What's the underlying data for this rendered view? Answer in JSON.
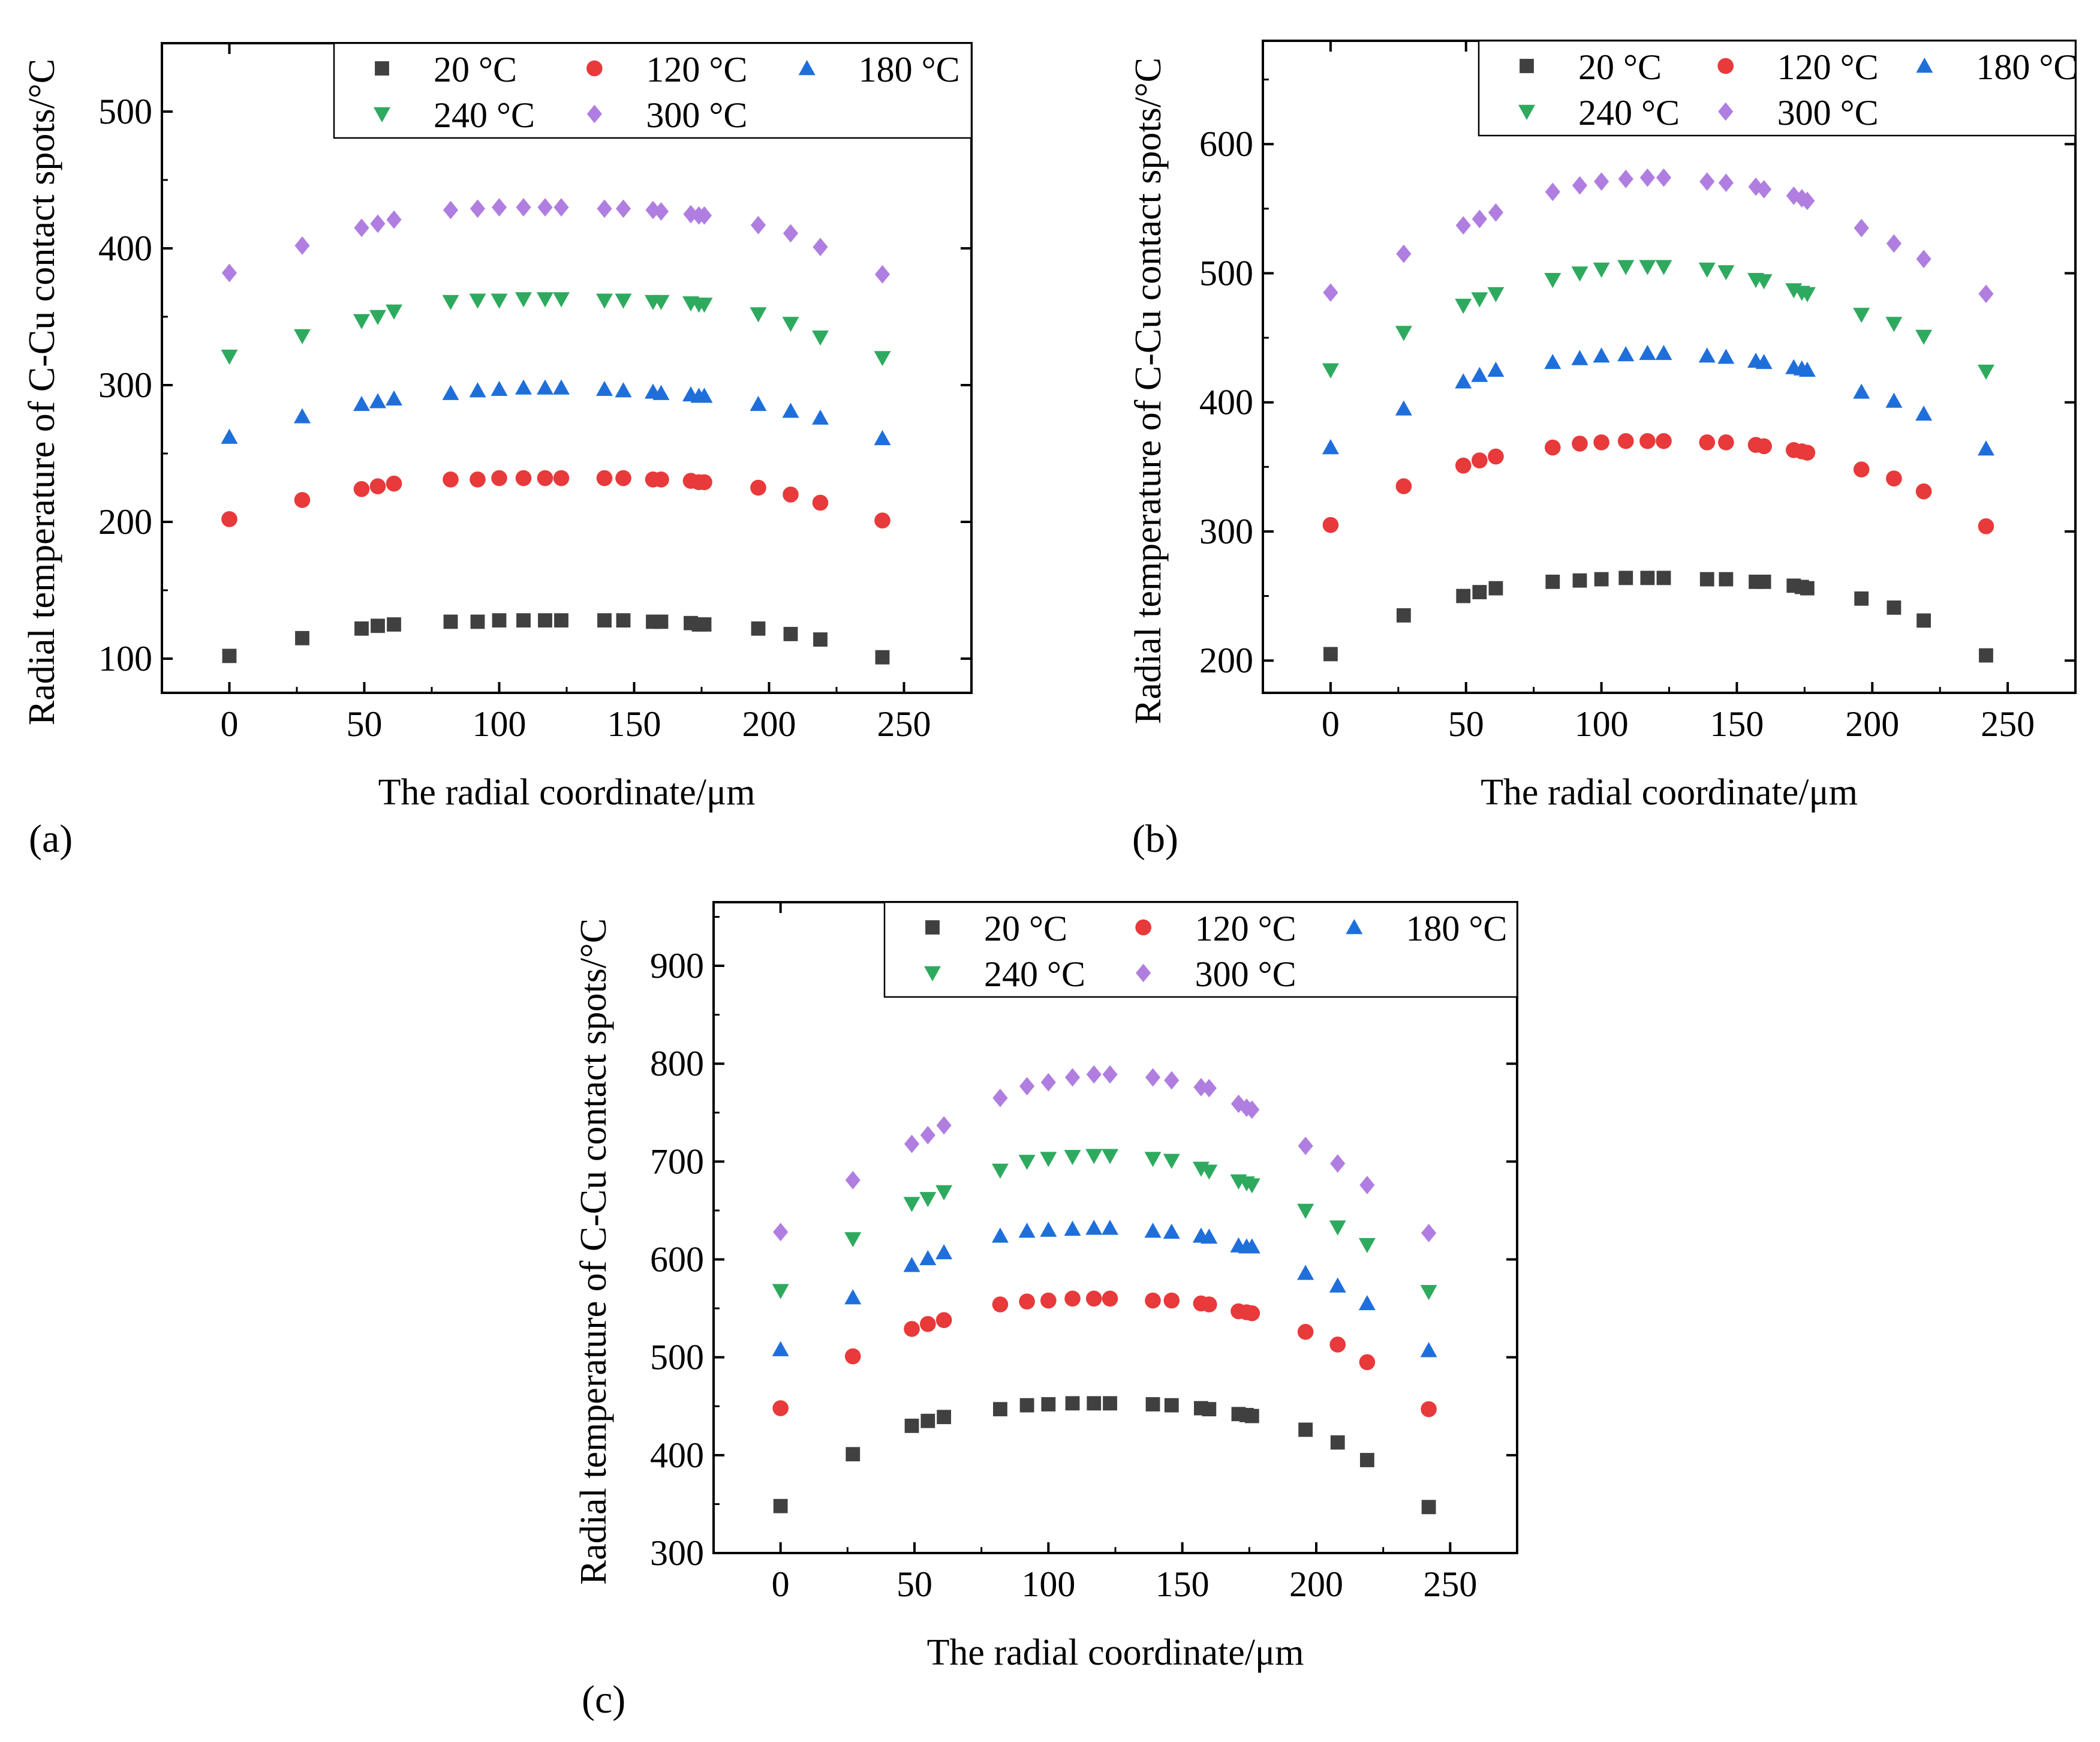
{
  "colors": {
    "s20": "#404040",
    "s120": "#e8393b",
    "s180": "#1f6fdb",
    "s240": "#2eaa5f",
    "s300": "#b07ee0"
  },
  "chart_data": [
    {
      "type": "scatter",
      "panel_label": "(a)",
      "title": "",
      "xlabel": "The radial coordinate/μm",
      "ylabel": "Radial temperature of C-Cu contact spots/°C",
      "xlim": [
        -25,
        275
      ],
      "ylim": [
        75,
        550
      ],
      "x_ticks": [
        0,
        50,
        100,
        150,
        200,
        250
      ],
      "y_ticks": [
        100,
        200,
        300,
        400,
        500
      ],
      "legend_position": "top-right",
      "x": [
        0,
        27,
        49,
        55,
        61,
        82,
        92,
        100,
        109,
        117,
        123,
        139,
        146,
        157,
        160,
        171,
        174,
        176,
        196,
        208,
        219,
        242
      ],
      "series": [
        {
          "name": "20 °C",
          "marker": "square",
          "values": [
            102,
            115,
            122,
            124,
            125,
            127,
            127,
            128,
            128,
            128,
            128,
            128,
            128,
            127,
            127,
            126,
            125,
            125,
            122,
            118,
            114,
            101
          ]
        },
        {
          "name": "120 °C",
          "marker": "circle",
          "values": [
            202,
            216,
            224,
            226,
            228,
            231,
            231,
            232,
            232,
            232,
            232,
            232,
            232,
            231,
            231,
            230,
            229,
            229,
            225,
            220,
            214,
            201
          ]
        },
        {
          "name": "180 °C",
          "marker": "triangle-up",
          "values": [
            262,
            277,
            286,
            288,
            290,
            294,
            296,
            297,
            298,
            298,
            298,
            297,
            296,
            295,
            294,
            293,
            292,
            292,
            286,
            281,
            276,
            261
          ]
        },
        {
          "name": "240 °C",
          "marker": "triangle-down",
          "values": [
            321,
            336,
            347,
            350,
            354,
            361,
            362,
            362,
            363,
            363,
            363,
            362,
            362,
            361,
            361,
            360,
            359,
            359,
            352,
            345,
            335,
            320
          ]
        },
        {
          "name": "300 °C",
          "marker": "diamond",
          "values": [
            382,
            402,
            415,
            418,
            421,
            428,
            429,
            430,
            430,
            430,
            430,
            429,
            429,
            428,
            427,
            425,
            424,
            424,
            417,
            411,
            401,
            381
          ]
        }
      ]
    },
    {
      "type": "scatter",
      "panel_label": "(b)",
      "title": "",
      "xlabel": "The radial coordinate/μm",
      "ylabel": "Radial temperature of C-Cu contact spots/°C",
      "xlim": [
        -25,
        275
      ],
      "ylim": [
        175,
        680
      ],
      "x_ticks": [
        0,
        50,
        100,
        150,
        200,
        250
      ],
      "y_ticks": [
        200,
        300,
        400,
        500,
        600
      ],
      "legend_position": "top-right",
      "x": [
        0,
        27,
        49,
        55,
        61,
        82,
        92,
        100,
        109,
        117,
        123,
        139,
        146,
        157,
        160,
        171,
        174,
        176,
        196,
        208,
        219,
        242
      ],
      "series": [
        {
          "name": "20 °C",
          "marker": "square",
          "values": [
            205,
            235,
            250,
            253,
            256,
            261,
            262,
            263,
            264,
            264,
            264,
            263,
            263,
            261,
            261,
            258,
            257,
            256,
            248,
            241,
            231,
            204
          ]
        },
        {
          "name": "120 °C",
          "marker": "circle",
          "values": [
            305,
            335,
            351,
            355,
            358,
            365,
            368,
            369,
            370,
            370,
            370,
            369,
            369,
            367,
            366,
            363,
            362,
            361,
            348,
            341,
            331,
            304
          ]
        },
        {
          "name": "180 °C",
          "marker": "triangle-up",
          "values": [
            365,
            395,
            416,
            421,
            425,
            431,
            434,
            436,
            437,
            438,
            438,
            436,
            435,
            432,
            431,
            427,
            426,
            425,
            408,
            401,
            391,
            364
          ]
        },
        {
          "name": "240 °C",
          "marker": "triangle-down",
          "values": [
            425,
            454,
            475,
            480,
            484,
            495,
            500,
            503,
            505,
            505,
            505,
            503,
            501,
            495,
            494,
            487,
            485,
            484,
            468,
            461,
            451,
            424
          ]
        },
        {
          "name": "300 °C",
          "marker": "diamond",
          "values": [
            485,
            515,
            537,
            542,
            547,
            563,
            568,
            571,
            573,
            574,
            574,
            571,
            570,
            567,
            565,
            560,
            558,
            556,
            535,
            523,
            511,
            484
          ]
        }
      ]
    },
    {
      "type": "scatter",
      "panel_label": "(c)",
      "title": "",
      "xlabel": "The radial coordinate/μm",
      "ylabel": "Radial temperature of C-Cu contact spots/°C",
      "xlim": [
        -25,
        275
      ],
      "ylim": [
        300,
        965
      ],
      "x_ticks": [
        0,
        50,
        100,
        150,
        200,
        250
      ],
      "y_ticks": [
        300,
        400,
        500,
        600,
        700,
        800,
        900
      ],
      "legend_position": "top-right",
      "x": [
        0,
        27,
        49,
        55,
        61,
        82,
        92,
        100,
        109,
        117,
        123,
        139,
        146,
        157,
        160,
        171,
        174,
        176,
        196,
        208,
        219,
        242
      ],
      "series": [
        {
          "name": "20 °C",
          "marker": "square",
          "values": [
            348,
            401,
            430,
            435,
            439,
            447,
            451,
            452,
            453,
            453,
            453,
            452,
            451,
            448,
            447,
            442,
            441,
            440,
            426,
            413,
            395,
            347
          ]
        },
        {
          "name": "120 °C",
          "marker": "circle",
          "values": [
            448,
            501,
            529,
            534,
            538,
            554,
            557,
            558,
            560,
            560,
            560,
            558,
            558,
            555,
            554,
            547,
            546,
            545,
            526,
            513,
            495,
            447
          ]
        },
        {
          "name": "180 °C",
          "marker": "triangle-up",
          "values": [
            508,
            561,
            594,
            601,
            607,
            624,
            629,
            630,
            631,
            632,
            632,
            629,
            628,
            624,
            623,
            614,
            613,
            613,
            586,
            573,
            555,
            507
          ]
        },
        {
          "name": "240 °C",
          "marker": "triangle-down",
          "values": [
            568,
            621,
            657,
            662,
            669,
            691,
            700,
            703,
            705,
            706,
            706,
            703,
            701,
            693,
            690,
            680,
            678,
            676,
            650,
            633,
            615,
            567
          ]
        },
        {
          "name": "300 °C",
          "marker": "diamond",
          "values": [
            628,
            681,
            718,
            727,
            737,
            765,
            777,
            781,
            786,
            789,
            789,
            786,
            783,
            776,
            775,
            759,
            755,
            753,
            716,
            698,
            676,
            627
          ]
        }
      ]
    }
  ]
}
